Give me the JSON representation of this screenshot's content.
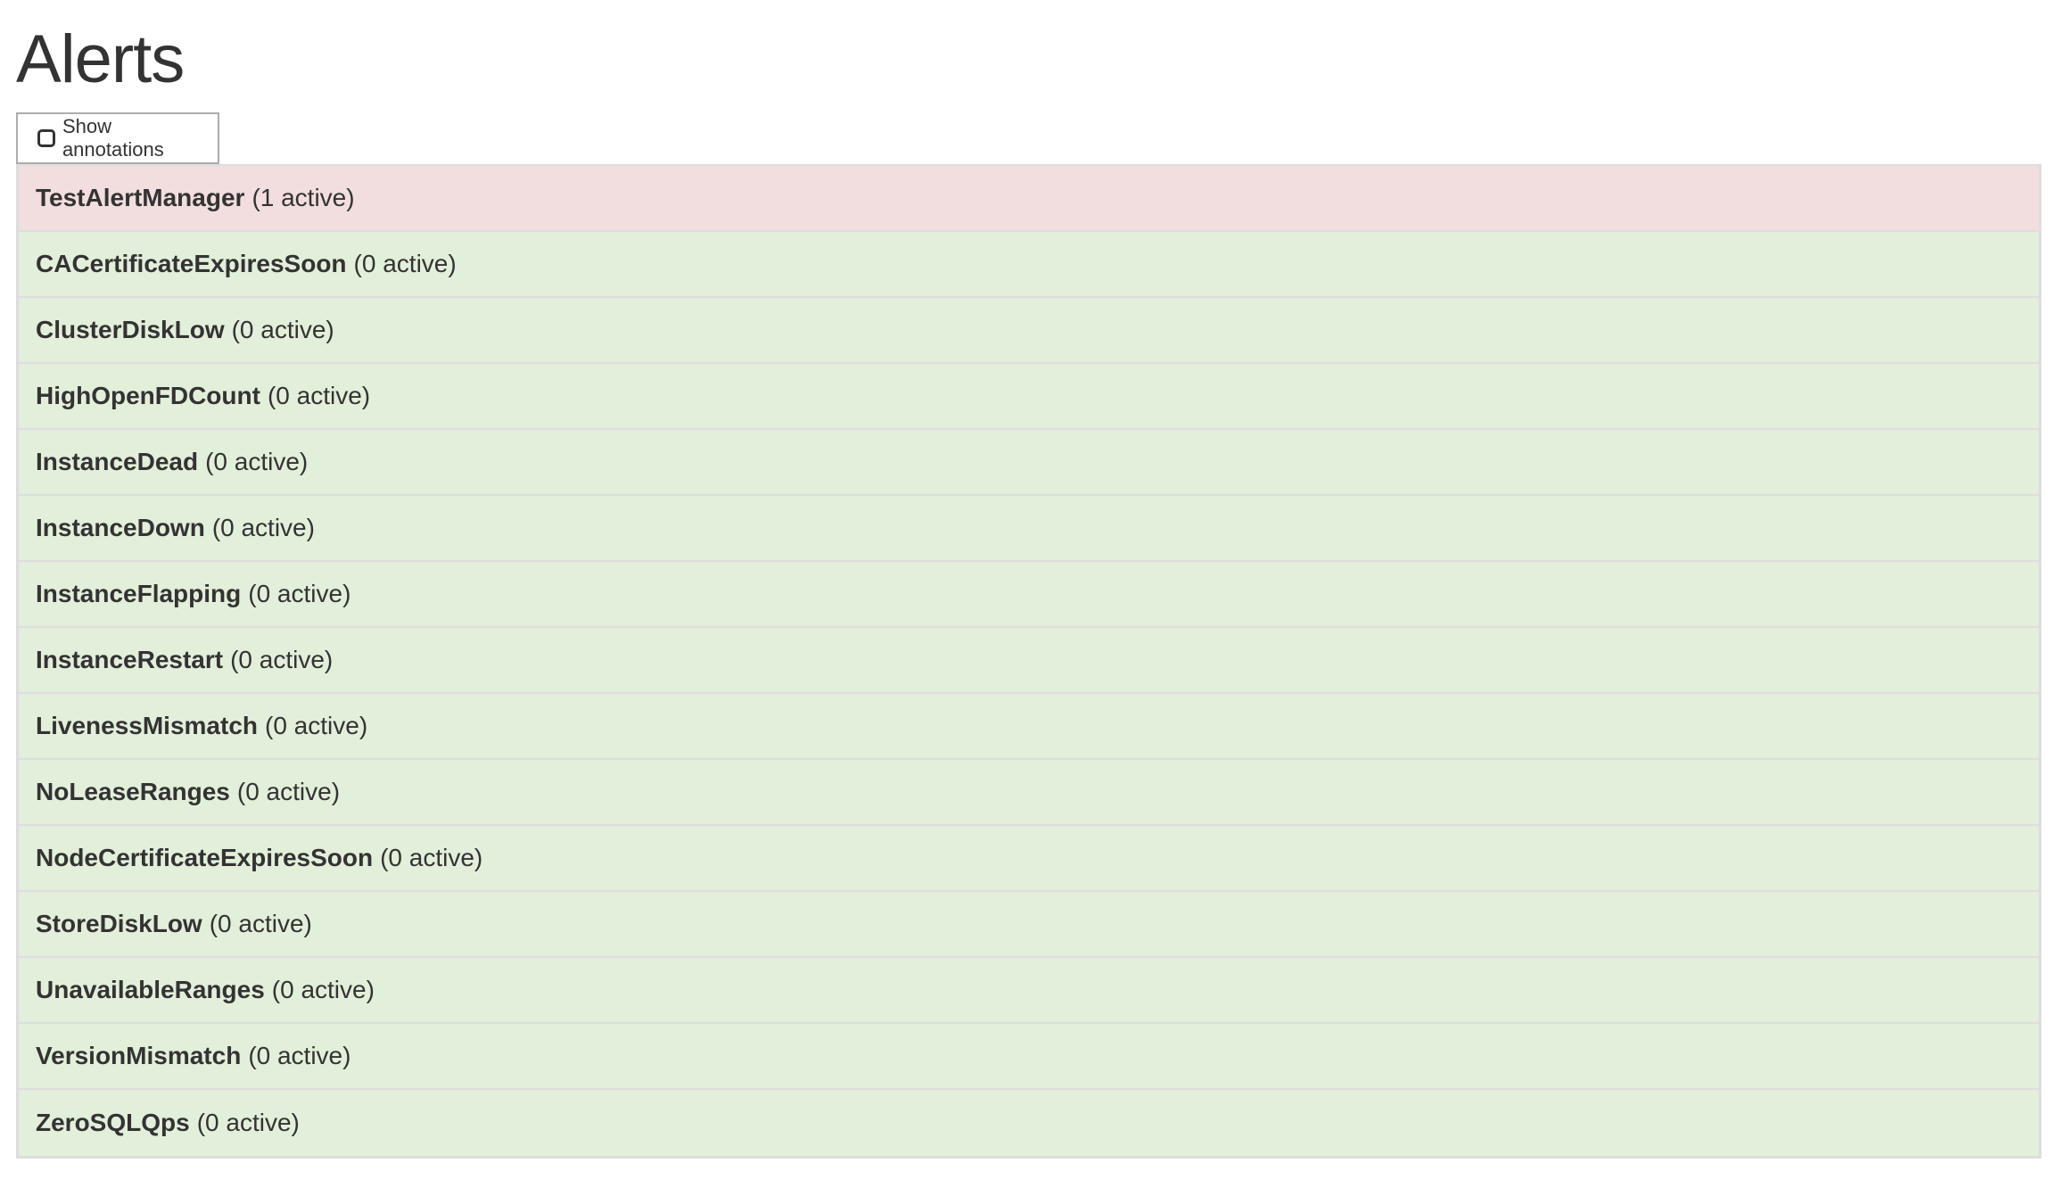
{
  "page": {
    "title": "Alerts"
  },
  "toolbar": {
    "show_annotations_label": "Show annotations",
    "show_annotations_checked": false
  },
  "colors": {
    "firing": "#f2dede",
    "inactive": "#e2efda",
    "border": "#dddddd"
  },
  "alerts": [
    {
      "name": "TestAlertManager",
      "status": "(1 active)",
      "state": "firing"
    },
    {
      "name": "CACertificateExpiresSoon",
      "status": "(0 active)",
      "state": "inactive"
    },
    {
      "name": "ClusterDiskLow",
      "status": "(0 active)",
      "state": "inactive"
    },
    {
      "name": "HighOpenFDCount",
      "status": "(0 active)",
      "state": "inactive"
    },
    {
      "name": "InstanceDead",
      "status": "(0 active)",
      "state": "inactive"
    },
    {
      "name": "InstanceDown",
      "status": "(0 active)",
      "state": "inactive"
    },
    {
      "name": "InstanceFlapping",
      "status": "(0 active)",
      "state": "inactive"
    },
    {
      "name": "InstanceRestart",
      "status": "(0 active)",
      "state": "inactive"
    },
    {
      "name": "LivenessMismatch",
      "status": "(0 active)",
      "state": "inactive"
    },
    {
      "name": "NoLeaseRanges",
      "status": "(0 active)",
      "state": "inactive"
    },
    {
      "name": "NodeCertificateExpiresSoon",
      "status": "(0 active)",
      "state": "inactive"
    },
    {
      "name": "StoreDiskLow",
      "status": "(0 active)",
      "state": "inactive"
    },
    {
      "name": "UnavailableRanges",
      "status": "(0 active)",
      "state": "inactive"
    },
    {
      "name": "VersionMismatch",
      "status": "(0 active)",
      "state": "inactive"
    },
    {
      "name": "ZeroSQLQps",
      "status": "(0 active)",
      "state": "inactive"
    }
  ]
}
